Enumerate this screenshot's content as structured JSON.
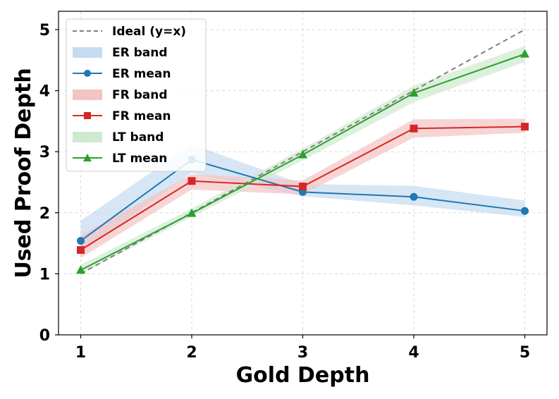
{
  "chart_data": {
    "type": "line",
    "xlabel": "Gold Depth",
    "ylabel": "Used Proof Depth",
    "x": [
      1,
      2,
      3,
      4,
      5
    ],
    "xlim": [
      0.8,
      5.2
    ],
    "ylim": [
      0,
      5.3
    ],
    "xticks": [
      1,
      2,
      3,
      4,
      5
    ],
    "yticks": [
      0,
      1,
      2,
      3,
      4,
      5
    ],
    "grid": true,
    "legend_position": "top-left",
    "ideal": {
      "name": "Ideal (y=x)",
      "color": "#808080",
      "x": [
        1,
        5
      ],
      "values": [
        1,
        5
      ]
    },
    "series": [
      {
        "key": "er",
        "band_name": "ER band",
        "mean_name": "ER mean",
        "color": "#1f77b4",
        "band_color": "#c6dbef",
        "marker": "circle",
        "values": [
          1.54,
          2.87,
          2.34,
          2.26,
          2.03
        ],
        "band_lower": [
          1.35,
          2.65,
          2.27,
          2.12,
          1.93
        ],
        "band_upper": [
          1.87,
          3.12,
          2.47,
          2.44,
          2.2
        ]
      },
      {
        "key": "fr",
        "band_name": "FR band",
        "mean_name": "FR mean",
        "color": "#d62728",
        "band_color": "#f4c3c3",
        "marker": "square",
        "values": [
          1.39,
          2.52,
          2.43,
          3.38,
          3.41
        ],
        "band_lower": [
          1.26,
          2.38,
          2.3,
          3.23,
          3.31
        ],
        "band_upper": [
          1.63,
          2.63,
          2.53,
          3.53,
          3.54
        ]
      },
      {
        "key": "lt",
        "band_name": "LT band",
        "mean_name": "LT mean",
        "color": "#2ca02c",
        "band_color": "#cfe9cf",
        "marker": "triangle",
        "values": [
          1.06,
          1.99,
          2.95,
          3.96,
          4.6
        ],
        "band_lower": [
          1.0,
          1.93,
          2.86,
          3.81,
          4.47
        ],
        "band_upper": [
          1.15,
          2.07,
          3.05,
          4.08,
          4.73
        ]
      }
    ]
  }
}
